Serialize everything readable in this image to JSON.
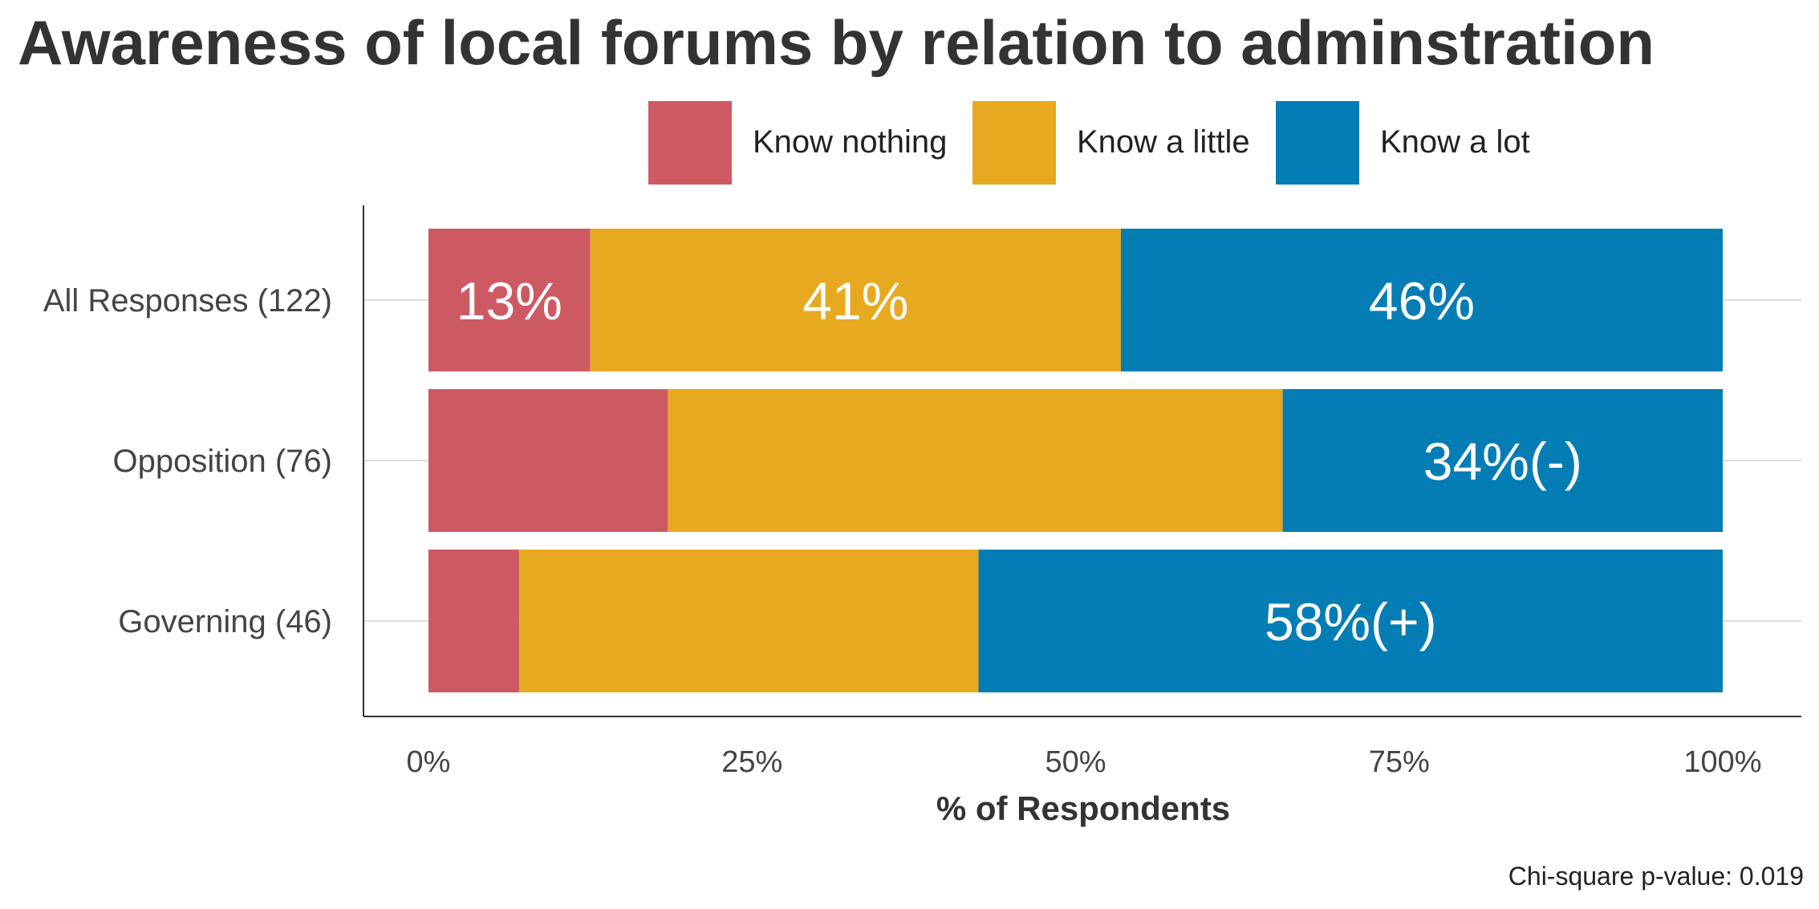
{
  "chart_data": {
    "type": "bar",
    "orientation": "horizontal",
    "stacked": true,
    "title": "Awareness of local forums by relation to adminstration",
    "xlabel": "% of Respondents",
    "ylabel": "",
    "xlim": [
      0,
      100
    ],
    "x_ticks": [
      "0%",
      "25%",
      "50%",
      "75%",
      "100%"
    ],
    "x_tick_values": [
      0,
      25,
      50,
      75,
      100
    ],
    "categories": [
      "All Responses (122)",
      "Opposition (76)",
      "Governing (46)"
    ],
    "series": [
      {
        "name": "Know nothing",
        "color": "#CD5A63",
        "values": [
          12.5,
          18.5,
          7
        ],
        "labels": [
          "13%",
          "",
          ""
        ]
      },
      {
        "name": "Know a little",
        "color": "#E7A920",
        "values": [
          41,
          47.5,
          35.5
        ],
        "labels": [
          "41%",
          "",
          ""
        ]
      },
      {
        "name": "Know a lot",
        "color": "#047DB5",
        "values": [
          46.5,
          34,
          57.5
        ],
        "labels": [
          "46%",
          "34%(-)",
          "58%(+)"
        ]
      }
    ],
    "legend_position": "top",
    "grid": {
      "horizontal_at_categories": true,
      "vertical": false
    },
    "note": "Chi-square p-value: 0.019"
  }
}
